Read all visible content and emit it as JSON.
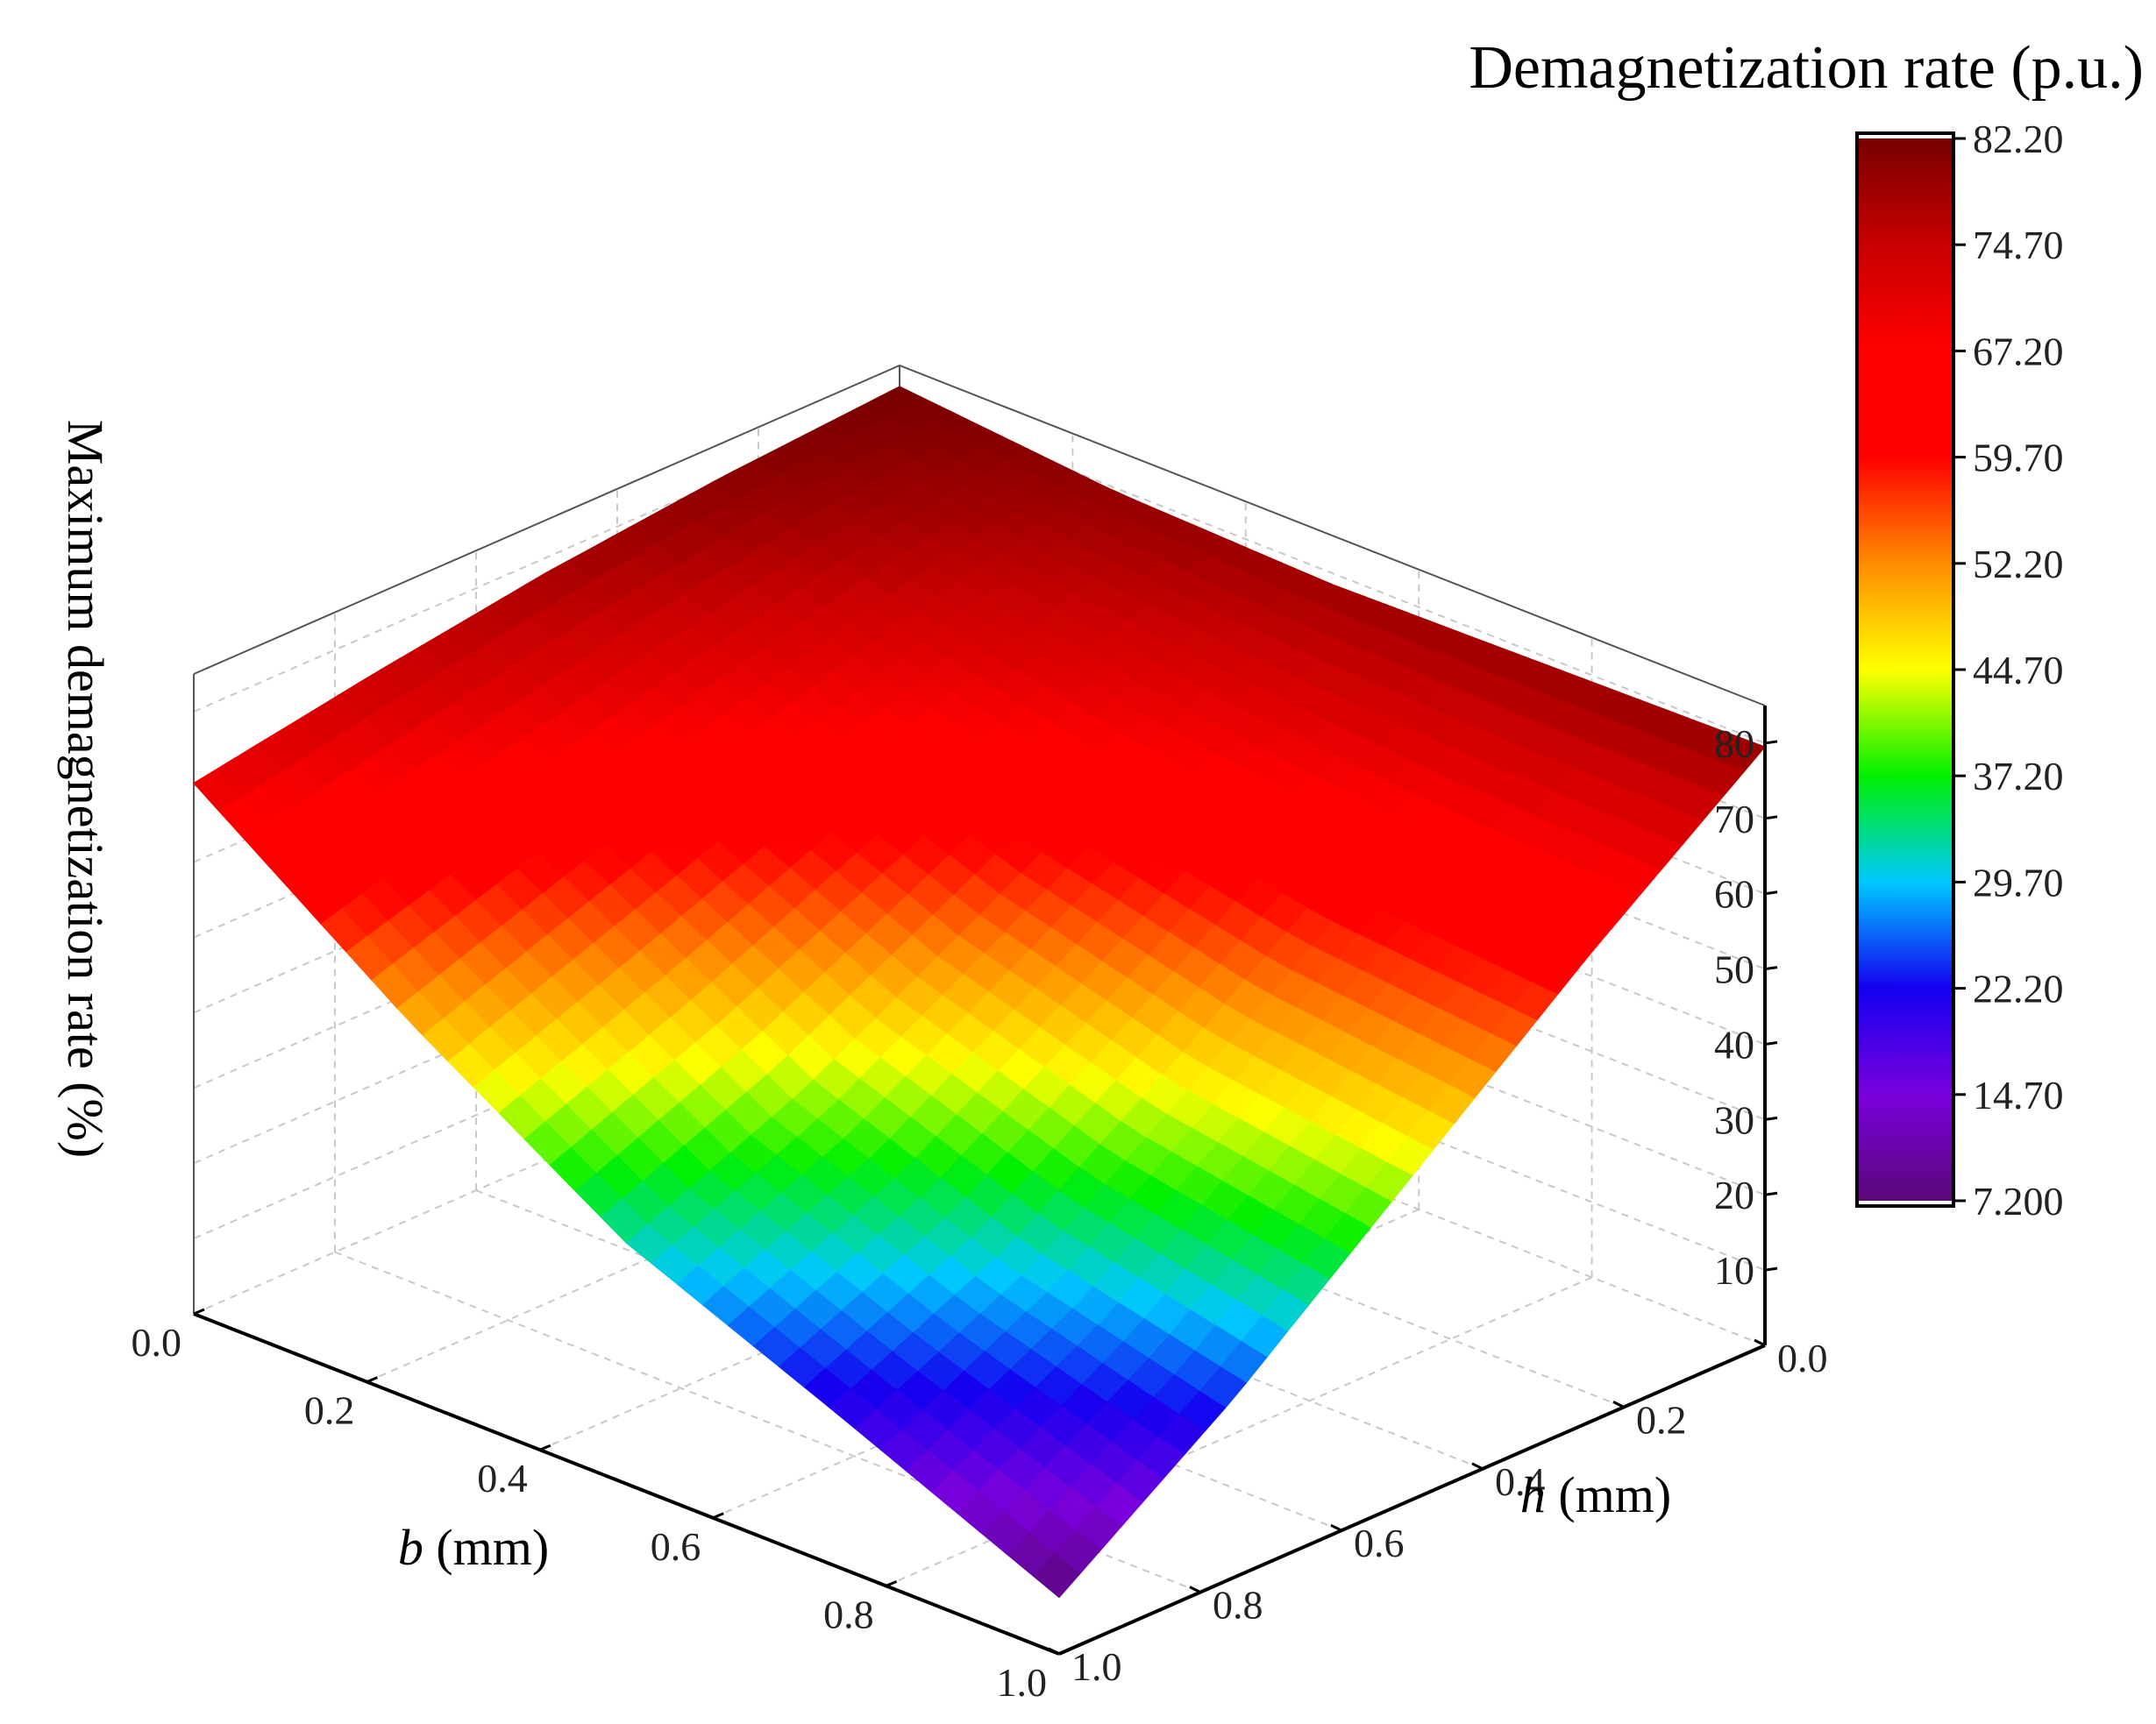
{
  "chart_data": {
    "type": "surface3d",
    "title": "",
    "colorbar": {
      "title": "Demagnetization rate (p.u.)",
      "min": 7.2,
      "max": 82.2,
      "ticks": [
        "82.20",
        "74.70",
        "67.20",
        "59.70",
        "52.20",
        "44.70",
        "37.20",
        "29.70",
        "22.20",
        "14.70",
        "7.200"
      ],
      "colors": [
        "#5a0878",
        "#7a00dc",
        "#1400f0",
        "#00c8ff",
        "#00f000",
        "#ffff00",
        "#ff8c00",
        "#ff0000",
        "#ff0000",
        "#c80000",
        "#780000"
      ]
    },
    "x_axis": {
      "label_italic": "b",
      "label_rest": " (mm)",
      "range": [
        0.0,
        1.0
      ],
      "ticks": [
        "0.0",
        "0.2",
        "0.4",
        "0.6",
        "0.8",
        "1.0"
      ]
    },
    "y_axis": {
      "label_italic": "h",
      "label_rest": " (mm)",
      "range": [
        0.0,
        1.0
      ],
      "ticks": [
        "0.0",
        "0.2",
        "0.4",
        "0.6",
        "0.8",
        "1.0"
      ]
    },
    "z_axis": {
      "label": "Maximum demagnetization rate (%)",
      "range": [
        0,
        85
      ],
      "ticks": [
        "10",
        "20",
        "30",
        "40",
        "50",
        "60",
        "70",
        "80"
      ]
    },
    "surface_grid": {
      "b": [
        0.0,
        0.25,
        0.5,
        0.75,
        1.0
      ],
      "h": [
        0.0,
        0.25,
        0.5,
        0.75,
        1.0
      ],
      "z": [
        [
          82.2,
          80.5,
          78.0,
          74.5,
          70.5
        ],
        [
          79.5,
          74.0,
          66.5,
          58.5,
          50.0
        ],
        [
          78.5,
          68.5,
          55.0,
          42.0,
          32.0
        ],
        [
          79.0,
          64.0,
          47.0,
          31.0,
          20.0
        ],
        [
          79.5,
          62.0,
          43.0,
          24.0,
          7.5
        ]
      ]
    }
  }
}
